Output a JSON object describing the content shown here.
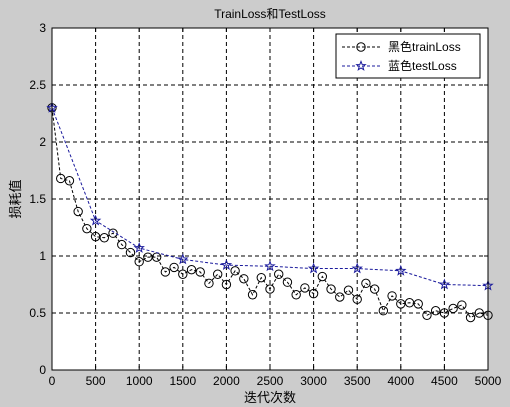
{
  "chart_data": {
    "type": "line",
    "title": "TrainLoss和TestLoss",
    "xlabel": "迭代次数",
    "ylabel": "损耗值",
    "xlim": [
      0,
      5000
    ],
    "ylim": [
      0,
      3
    ],
    "xticks": [
      0,
      500,
      1000,
      1500,
      2000,
      2500,
      3000,
      3500,
      4000,
      4500,
      5000
    ],
    "yticks": [
      0,
      0.5,
      1,
      1.5,
      2,
      2.5,
      3
    ],
    "grid": true,
    "legend_position": "top-right",
    "series": [
      {
        "name": "黑色trainLoss",
        "color": "#000000",
        "marker": "circle",
        "line_style": "dashed",
        "x": [
          0,
          100,
          200,
          300,
          400,
          500,
          600,
          700,
          800,
          900,
          1000,
          1100,
          1200,
          1300,
          1400,
          1500,
          1600,
          1700,
          1800,
          1900,
          2000,
          2100,
          2200,
          2300,
          2400,
          2500,
          2600,
          2700,
          2800,
          2900,
          3000,
          3100,
          3200,
          3300,
          3400,
          3500,
          3600,
          3700,
          3800,
          3900,
          4000,
          4100,
          4200,
          4300,
          4400,
          4500,
          4600,
          4700,
          4800,
          4900,
          5000
        ],
        "y": [
          2.3,
          1.68,
          1.66,
          1.39,
          1.24,
          1.17,
          1.16,
          1.2,
          1.1,
          1.03,
          0.95,
          0.99,
          0.99,
          0.86,
          0.9,
          0.84,
          0.88,
          0.86,
          0.76,
          0.84,
          0.75,
          0.87,
          0.8,
          0.66,
          0.81,
          0.71,
          0.84,
          0.77,
          0.66,
          0.72,
          0.67,
          0.82,
          0.71,
          0.64,
          0.7,
          0.62,
          0.76,
          0.71,
          0.52,
          0.65,
          0.58,
          0.59,
          0.58,
          0.48,
          0.52,
          0.5,
          0.54,
          0.57,
          0.46,
          0.5,
          0.48
        ]
      },
      {
        "name": "蓝色testLoss",
        "color": "#1a1a9c",
        "marker": "star",
        "line_style": "dashed",
        "x": [
          0,
          500,
          1000,
          1500,
          2000,
          2500,
          3000,
          3500,
          4000,
          4500,
          5000
        ],
        "y": [
          2.3,
          1.31,
          1.07,
          0.97,
          0.92,
          0.91,
          0.89,
          0.89,
          0.87,
          0.75,
          0.74
        ]
      }
    ]
  }
}
